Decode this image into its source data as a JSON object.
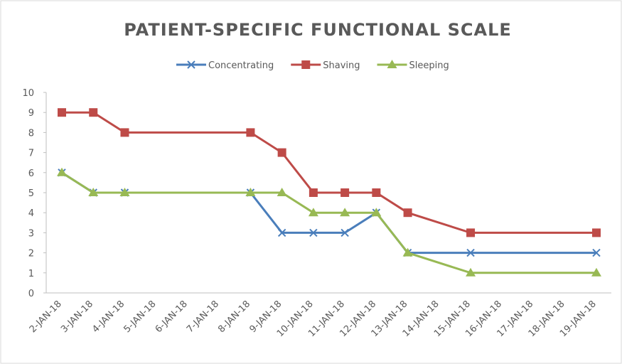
{
  "chart_data": {
    "type": "line",
    "title": "PATIENT-SPECIFIC FUNCTIONAL SCALE",
    "categories": [
      "2-JAN-18",
      "3-JAN-18",
      "4-JAN-18",
      "5-JAN-18",
      "6-JAN-18",
      "7-JAN-18",
      "8-JAN-18",
      "9-JAN-18",
      "10-JAN-18",
      "11-JAN-18",
      "12-JAN-18",
      "13-JAN-18",
      "14-JAN-18",
      "15-JAN-18",
      "16-JAN-18",
      "17-JAN-18",
      "18-JAN-18",
      "19-JAN-18"
    ],
    "series": [
      {
        "name": "Concentrating",
        "color": "#4a7ebb",
        "marker": "x",
        "x": [
          "2-JAN-18",
          "3-JAN-18",
          "4-JAN-18",
          "8-JAN-18",
          "9-JAN-18",
          "10-JAN-18",
          "11-JAN-18",
          "12-JAN-18",
          "13-JAN-18",
          "15-JAN-18",
          "19-JAN-18"
        ],
        "values": [
          6,
          5,
          5,
          5,
          3,
          3,
          3,
          4,
          2,
          2,
          2
        ]
      },
      {
        "name": "Shaving",
        "color": "#be4b48",
        "marker": "square",
        "x": [
          "2-JAN-18",
          "3-JAN-18",
          "4-JAN-18",
          "8-JAN-18",
          "9-JAN-18",
          "10-JAN-18",
          "11-JAN-18",
          "12-JAN-18",
          "13-JAN-18",
          "15-JAN-18",
          "19-JAN-18"
        ],
        "values": [
          9,
          9,
          8,
          8,
          7,
          5,
          5,
          5,
          4,
          3,
          3
        ]
      },
      {
        "name": "Sleeping",
        "color": "#98b954",
        "marker": "triangle",
        "x": [
          "2-JAN-18",
          "3-JAN-18",
          "4-JAN-18",
          "8-JAN-18",
          "9-JAN-18",
          "10-JAN-18",
          "11-JAN-18",
          "12-JAN-18",
          "13-JAN-18",
          "15-JAN-18",
          "19-JAN-18"
        ],
        "values": [
          6,
          5,
          5,
          5,
          5,
          4,
          4,
          4,
          2,
          1,
          1
        ]
      }
    ],
    "ylim": [
      0,
      10
    ],
    "yticks": [
      0,
      1,
      2,
      3,
      4,
      5,
      6,
      7,
      8,
      9,
      10
    ],
    "grid": false,
    "legend": "top"
  }
}
